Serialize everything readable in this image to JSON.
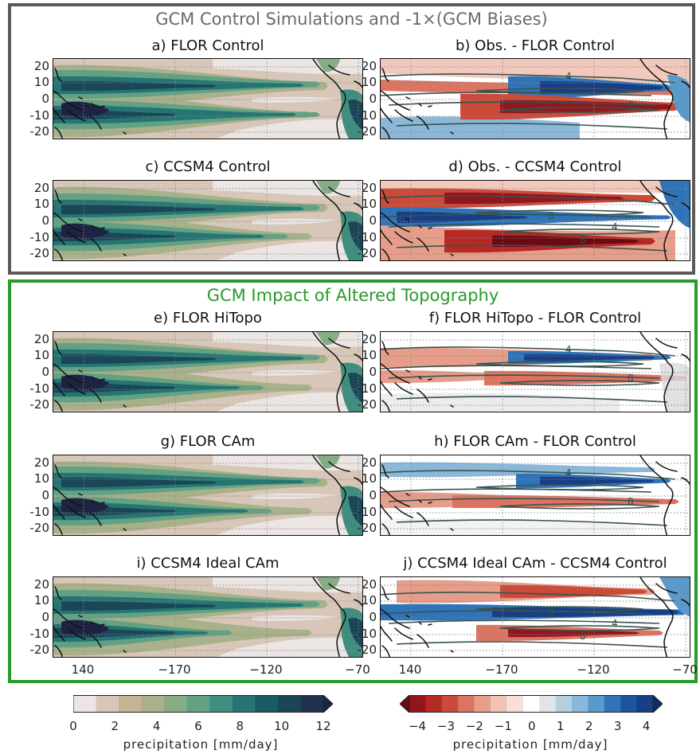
{
  "figure": {
    "top_section_title": "GCM Control Simulations and -1×(GCM Biases)",
    "bottom_section_title": "GCM Impact of Altered Topography",
    "panels": [
      {
        "title": "a) FLOR Control",
        "kind": "seq",
        "variant": 0
      },
      {
        "title": "b) Obs. - FLOR Control",
        "kind": "div",
        "variant": 0,
        "contour_labels": [
          "4",
          "8"
        ]
      },
      {
        "title": "c) CCSM4 Control",
        "kind": "seq",
        "variant": 1
      },
      {
        "title": "d) Obs. - CCSM4 Control",
        "kind": "div",
        "variant": 1,
        "contour_labels": [
          "8",
          "8",
          "4"
        ]
      },
      {
        "title": "e) FLOR HiTopo",
        "kind": "seq",
        "variant": 2
      },
      {
        "title": "f) FLOR HiTopo - FLOR Control",
        "kind": "div",
        "variant": 2,
        "contour_labels": [
          "4",
          "8"
        ]
      },
      {
        "title": "g) FLOR CAm",
        "kind": "seq",
        "variant": 3
      },
      {
        "title": "h) FLOR CAm - FLOR Control",
        "kind": "div",
        "variant": 3,
        "contour_labels": [
          "4",
          "8"
        ]
      },
      {
        "title": "i) CCSM4 Ideal CAm",
        "kind": "seq",
        "variant": 4
      },
      {
        "title": "j) CCSM4 Ideal CAm - CCSM4 Control",
        "kind": "div",
        "variant": 4,
        "contour_labels": [
          "8",
          "8",
          "4"
        ]
      }
    ],
    "y_ticks": [
      "20",
      "10",
      "0",
      "-10",
      "-20"
    ],
    "x_ticks": [
      "140",
      "−170",
      "−120",
      "−70"
    ],
    "colorbar_left": {
      "ticks": [
        "0",
        "2",
        "4",
        "6",
        "8",
        "10",
        "12"
      ],
      "label": "precipitation [mm/day]",
      "colors": [
        "#ebe6e3",
        "#d8c7b8",
        "#c5b394",
        "#a9b18a",
        "#87ad86",
        "#63a184",
        "#3f8d7e",
        "#257572",
        "#175c63",
        "#1a4658",
        "#20314d",
        "#1e2342"
      ]
    },
    "colorbar_right": {
      "ticks": [
        "−4",
        "−3",
        "−2",
        "−1",
        "0",
        "1",
        "2",
        "3",
        "4"
      ],
      "label": "precipitation [mm/day]",
      "colors": [
        "#6a0a12",
        "#94161d",
        "#b52a25",
        "#cb4a38",
        "#db7460",
        "#e69d89",
        "#efc2b4",
        "#f6e0d8",
        "#ffffff",
        "#dfe5ea",
        "#b6cfe0",
        "#8bb7d8",
        "#5a9acb",
        "#2f74b8",
        "#1b55a0",
        "#183e85",
        "#102b62"
      ]
    }
  }
}
